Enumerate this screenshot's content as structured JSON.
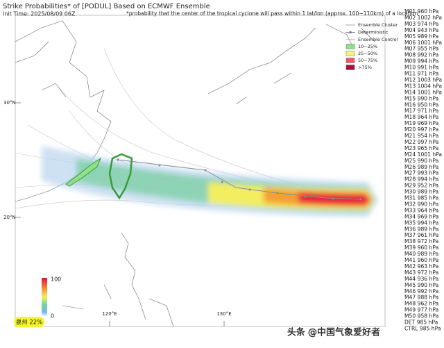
{
  "header": {
    "title": "Strike Probabilities* of [PODUL] Based on ECMWF Ensemble",
    "init_time": "Init Time: 2025/08/09 06Z",
    "note": "*probability that the center of the tropical cyclone will pass within 1 lat/lon (approx. 100~110km) of a location"
  },
  "legend": {
    "lines": [
      "Ensemble Cluster",
      "Deterministic",
      "Ensemble Control"
    ],
    "bins": [
      {
        "label": "10~25%",
        "color": "#8fe08a"
      },
      {
        "label": "25~50%",
        "color": "#f4f47a"
      },
      {
        "label": "50~75%",
        "color": "#ef5a6a"
      },
      {
        "label": ">75%",
        "color": "#a8123a"
      }
    ]
  },
  "map": {
    "lat_labels": [
      "30°N",
      "20°N"
    ],
    "lon_labels": [
      "120°E",
      "130°E"
    ]
  },
  "colorbar": {
    "ticks": [
      100,
      0
    ]
  },
  "location_label": "泉州 22%",
  "watermark": "头条 @中国气象爱好者",
  "members": [
    {
      "label": "M01 960 hPa",
      "color": "#e0308a"
    },
    {
      "label": "M02 1002 hPa",
      "color": "#333333"
    },
    {
      "label": "M03 974 hPa",
      "color": "#f39a1e"
    },
    {
      "label": "M04 943 hPa",
      "color": "#7a0a1a"
    },
    {
      "label": "M05 989 hPa",
      "color": "#f2b400"
    },
    {
      "label": "M06 1001 hPa",
      "color": "#333333"
    },
    {
      "label": "M07 955 hPa",
      "color": "#e0308a"
    },
    {
      "label": "M08 992 hPa",
      "color": "#2a8ad8"
    },
    {
      "label": "M09 994 hPa",
      "color": "#2a8ad8"
    },
    {
      "label": "M10 991 hPa",
      "color": "#2a8ad8"
    },
    {
      "label": "M11 971 hPa",
      "color": "#f39a1e"
    },
    {
      "label": "M12 1003 hPa",
      "color": "#333333"
    },
    {
      "label": "M13 1004 hPa",
      "color": "#333333"
    },
    {
      "label": "M14 1001 hPa",
      "color": "#333333"
    },
    {
      "label": "M15 990 hPa",
      "color": "#f39a1e"
    },
    {
      "label": "M16 950 hPa",
      "color": "#7a0a1a"
    },
    {
      "label": "M17 971 hPa",
      "color": "#f39a1e"
    },
    {
      "label": "M18 964 hPa",
      "color": "#e0308a"
    },
    {
      "label": "M19 969 hPa",
      "color": "#e0308a"
    },
    {
      "label": "M20 997 hPa",
      "color": "#2a8ad8"
    },
    {
      "label": "M21 954 hPa",
      "color": "#e0308a"
    },
    {
      "label": "M22 997 hPa",
      "color": "#2a8ad8"
    },
    {
      "label": "M23 965 hPa",
      "color": "#e0308a"
    },
    {
      "label": "M24 1001 hPa",
      "color": "#333333"
    },
    {
      "label": "M25 990 hPa",
      "color": "#f39a1e"
    },
    {
      "label": "M26 989 hPa",
      "color": "#f39a1e"
    },
    {
      "label": "M27 993 hPa",
      "color": "#2a8ad8"
    },
    {
      "label": "M28 994 hPa",
      "color": "#2a8ad8"
    },
    {
      "label": "M29 952 hPa",
      "color": "#e0308a"
    },
    {
      "label": "M30 989 hPa",
      "color": "#f39a1e"
    },
    {
      "label": "M31 985 hPa",
      "color": "#f39a1e"
    },
    {
      "label": "M32 990 hPa",
      "color": "#f39a1e"
    },
    {
      "label": "M33 964 hPa",
      "color": "#e0308a"
    },
    {
      "label": "M34 969 hPa",
      "color": "#e0308a"
    },
    {
      "label": "M35 994 hPa",
      "color": "#2a8ad8"
    },
    {
      "label": "M36 989 hPa",
      "color": "#f39a1e"
    },
    {
      "label": "M37 961 hPa",
      "color": "#e0308a"
    },
    {
      "label": "M38 972 hPa",
      "color": "#f39a1e"
    },
    {
      "label": "M39 960 hPa",
      "color": "#e0308a"
    },
    {
      "label": "M40 989 hPa",
      "color": "#f39a1e"
    },
    {
      "label": "M41 960 hPa",
      "color": "#e0308a"
    },
    {
      "label": "M42 963 hPa",
      "color": "#e0308a"
    },
    {
      "label": "M43 972 hPa",
      "color": "#f39a1e"
    },
    {
      "label": "M44 936 hPa",
      "color": "#7a0a1a"
    },
    {
      "label": "M45 990 hPa",
      "color": "#f2b400"
    },
    {
      "label": "M46 992 hPa",
      "color": "#2a8ad8"
    },
    {
      "label": "M47 988 hPa",
      "color": "#f39a1e"
    },
    {
      "label": "M48 962 hPa",
      "color": "#e0308a"
    },
    {
      "label": "M49 977 hPa",
      "color": "#f39a1e"
    },
    {
      "label": "M50 958 hPa",
      "color": "#e0308a"
    },
    {
      "label": "DET 985 hPa",
      "color": "#f2b400"
    },
    {
      "label": "CTRL 985 hPa",
      "color": "#f2b400"
    }
  ]
}
